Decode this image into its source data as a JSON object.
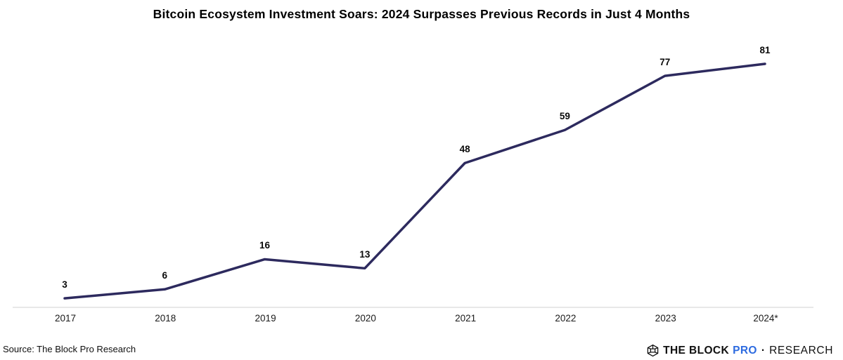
{
  "title": "Bitcoin Ecosystem Investment Soars: 2024 Surpasses Previous Records in Just 4 Months",
  "source": "Source: The Block Pro Research",
  "footer_logo": {
    "icon": "block-cube-icon",
    "brand": "THE BLOCK",
    "pro": "PRO",
    "separator": "·",
    "suffix": "RESEARCH",
    "pro_color": "#2d6be0",
    "text_color": "#101010"
  },
  "chart_data": {
    "type": "line",
    "categories": [
      "2017",
      "2018",
      "2019",
      "2020",
      "2021",
      "2022",
      "2023",
      "2024*"
    ],
    "values": [
      3,
      6,
      16,
      13,
      48,
      59,
      77,
      81
    ],
    "title": "Bitcoin Ecosystem Investment Soars: 2024 Surpasses Previous Records in Just 4 Months",
    "xlabel": "",
    "ylabel": "",
    "ylim": [
      0,
      85
    ],
    "grid": false,
    "legend": false,
    "data_labels": true,
    "line_color": "#2d2a5e",
    "line_width": 3.5,
    "axis_color": "#d9d9d9",
    "label_color": "#0a0a0a"
  }
}
